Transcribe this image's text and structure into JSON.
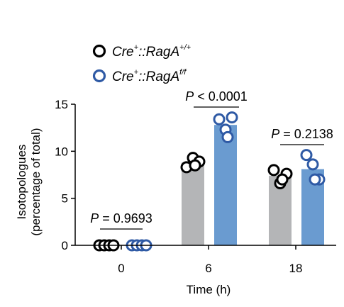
{
  "chart_data": {
    "type": "bar",
    "categories": [
      "0",
      "6",
      "18"
    ],
    "xlabel": "Time (h)",
    "ylabel": [
      "Isotopologues",
      "(percentage of total)"
    ],
    "ylim": [
      0,
      15
    ],
    "yticks": [
      "0",
      "5",
      "10",
      "15"
    ],
    "grid": false,
    "legend_position": "top-left",
    "series": [
      {
        "name_main": "Cre",
        "name_sup1": "+",
        "name_mid": "::RagA",
        "name_sup2": "+/+",
        "color": "#b4b5b7",
        "marker_edge": "#000000",
        "values": [
          0.0,
          8.8,
          7.4
        ],
        "points": [
          [
            0.0,
            0.0,
            0.0,
            0.0
          ],
          [
            8.3,
            9.3,
            8.9,
            8.5
          ],
          [
            8.0,
            6.6,
            7.6,
            7.0
          ]
        ]
      },
      {
        "name_main": "Cre",
        "name_sup1": "+",
        "name_mid": "::RagA",
        "name_sup2": "f/f",
        "color": "#6a9bd0",
        "marker_edge": "#2f5aa5",
        "values": [
          0.0,
          12.8,
          8.1
        ],
        "points": [
          [
            0.0,
            0.0,
            0.0,
            0.0
          ],
          [
            13.4,
            12.3,
            13.6,
            11.5
          ],
          [
            9.6,
            8.6,
            7.0,
            7.0
          ]
        ]
      }
    ],
    "annotations": [
      {
        "p_label": "P",
        "rest": " = 0.9693",
        "category_index": 0
      },
      {
        "p_label": "P",
        "rest": " < 0.0001",
        "category_index": 1
      },
      {
        "p_label": "P",
        "rest": " = 0.2138",
        "category_index": 2
      }
    ]
  }
}
